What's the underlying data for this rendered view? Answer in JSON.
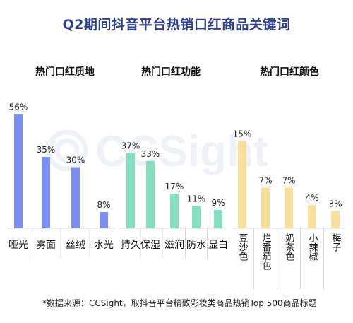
{
  "title": "Q2期间抖音平台热销口红商品关键词",
  "footnote": "*数据来源：CCSight，取抖音平台精致彩妆类商品热销Top 500商品标题",
  "watermark": "CCSight",
  "chart_data": [
    {
      "type": "bar",
      "title": "热门口红质地",
      "categories": [
        "哑光",
        "雾面",
        "丝绒",
        "水光"
      ],
      "values": [
        56,
        35,
        30,
        8
      ],
      "value_labels": [
        "56%",
        "35%",
        "30%",
        "8%"
      ],
      "color": "#7b8ff0",
      "ylim": [
        0,
        60
      ]
    },
    {
      "type": "bar",
      "title": "热门口红功能",
      "categories": [
        "持久",
        "保湿",
        "滋润",
        "防水",
        "显白"
      ],
      "values": [
        37,
        33,
        17,
        11,
        9
      ],
      "value_labels": [
        "37%",
        "33%",
        "17%",
        "11%",
        "9%"
      ],
      "color": "#84dfbe",
      "ylim": [
        0,
        60
      ]
    },
    {
      "type": "bar",
      "title": "热门口红颜色",
      "categories": [
        "豆沙色",
        "烂番茄色",
        "奶茶色",
        "小辣椒",
        "梅子"
      ],
      "values": [
        15,
        7,
        7,
        4,
        3
      ],
      "value_labels": [
        "15%",
        "7%",
        "7%",
        "4%",
        "3%"
      ],
      "color": "#f9df9c",
      "ylim": [
        0,
        18
      ],
      "vertical_labels": true
    }
  ]
}
